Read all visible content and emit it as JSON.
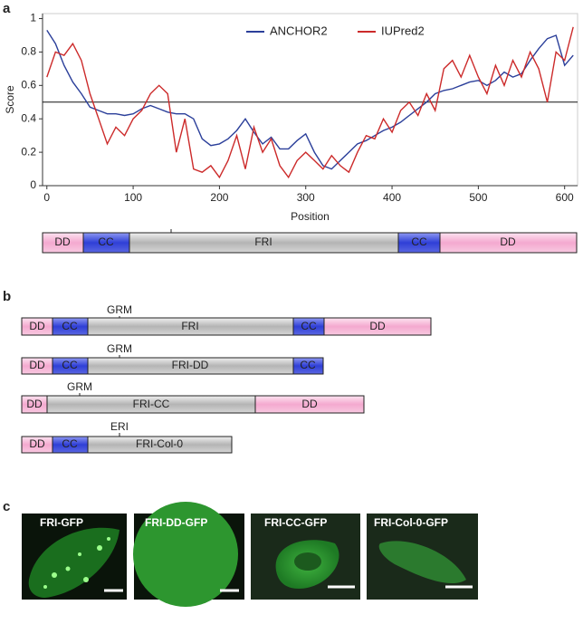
{
  "panels": [
    "a",
    "b",
    "c"
  ],
  "chart_data": {
    "type": "line",
    "xlabel": "Position",
    "ylabel": "Score",
    "x": [
      0,
      10,
      20,
      30,
      40,
      50,
      60,
      70,
      80,
      90,
      100,
      110,
      120,
      130,
      140,
      150,
      160,
      170,
      180,
      190,
      200,
      210,
      220,
      230,
      240,
      250,
      260,
      270,
      280,
      290,
      300,
      310,
      320,
      330,
      340,
      350,
      360,
      370,
      380,
      390,
      400,
      410,
      420,
      430,
      440,
      450,
      460,
      470,
      480,
      490,
      500,
      510,
      520,
      530,
      540,
      550,
      560,
      570,
      580,
      590,
      600,
      610
    ],
    "series": [
      {
        "name": "ANCHOR2",
        "color": "#2b3f9a",
        "values": [
          0.93,
          0.85,
          0.72,
          0.62,
          0.55,
          0.47,
          0.45,
          0.43,
          0.43,
          0.42,
          0.43,
          0.46,
          0.48,
          0.46,
          0.44,
          0.43,
          0.43,
          0.4,
          0.28,
          0.24,
          0.25,
          0.28,
          0.33,
          0.4,
          0.32,
          0.25,
          0.29,
          0.22,
          0.22,
          0.27,
          0.31,
          0.2,
          0.12,
          0.1,
          0.15,
          0.2,
          0.25,
          0.27,
          0.3,
          0.33,
          0.35,
          0.38,
          0.42,
          0.46,
          0.5,
          0.55,
          0.57,
          0.58,
          0.6,
          0.62,
          0.63,
          0.6,
          0.63,
          0.68,
          0.65,
          0.67,
          0.75,
          0.82,
          0.88,
          0.9,
          0.72,
          0.78
        ]
      },
      {
        "name": "IUPred2",
        "color": "#cc2a2a",
        "values": [
          0.65,
          0.8,
          0.78,
          0.85,
          0.75,
          0.55,
          0.4,
          0.25,
          0.35,
          0.3,
          0.4,
          0.45,
          0.55,
          0.6,
          0.55,
          0.2,
          0.4,
          0.1,
          0.08,
          0.12,
          0.05,
          0.15,
          0.3,
          0.1,
          0.35,
          0.2,
          0.28,
          0.12,
          0.05,
          0.15,
          0.2,
          0.15,
          0.1,
          0.18,
          0.12,
          0.08,
          0.2,
          0.3,
          0.28,
          0.4,
          0.32,
          0.45,
          0.5,
          0.42,
          0.55,
          0.45,
          0.7,
          0.75,
          0.65,
          0.78,
          0.65,
          0.55,
          0.72,
          0.6,
          0.75,
          0.65,
          0.8,
          0.7,
          0.5,
          0.8,
          0.75,
          0.95
        ]
      }
    ],
    "threshold": 0.5,
    "xlim": [
      -5,
      615
    ],
    "xticks": [
      0,
      100,
      200,
      300,
      400,
      500,
      600
    ],
    "ylim": [
      0,
      1.03
    ],
    "yticks": [
      0,
      {
        "value": 0.2,
        "label": "0.2"
      },
      {
        "value": 0.4,
        "label": "0.4"
      },
      {
        "value": 0.6,
        "label": "0.6"
      },
      {
        "value": 0.8,
        "label": "0.8"
      },
      1
    ],
    "legend": "top"
  },
  "domain_map": [
    "DD",
    "CC",
    "FRI",
    "CC",
    "DD"
  ],
  "constructs": [
    {
      "segments": [
        "DD",
        "CC",
        "FRI",
        "CC",
        "DD"
      ],
      "site": "GRM"
    },
    {
      "segments": [
        "DD",
        "CC",
        "FRI-DD",
        "CC"
      ],
      "site": "GRM"
    },
    {
      "segments": [
        "DD",
        "FRI-CC",
        "DD"
      ],
      "site": "GRM"
    },
    {
      "segments": [
        "DD",
        "CC",
        "FRI-Col-0"
      ],
      "site": "ERI"
    }
  ],
  "images": [
    "FRI-GFP",
    "FRI-DD-GFP",
    "FRI-CC-GFP",
    "FRI-Col-0-GFP"
  ]
}
